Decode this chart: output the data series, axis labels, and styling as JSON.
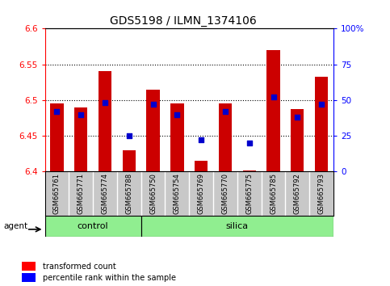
{
  "title": "GDS5198 / ILMN_1374106",
  "samples": [
    "GSM665761",
    "GSM665771",
    "GSM665774",
    "GSM665788",
    "GSM665750",
    "GSM665754",
    "GSM665769",
    "GSM665770",
    "GSM665775",
    "GSM665785",
    "GSM665792",
    "GSM665793"
  ],
  "groups": [
    "control",
    "control",
    "control",
    "control",
    "silica",
    "silica",
    "silica",
    "silica",
    "silica",
    "silica",
    "silica",
    "silica"
  ],
  "bar_tops": [
    6.495,
    6.49,
    6.54,
    6.43,
    6.515,
    6.495,
    6.415,
    6.495,
    6.402,
    6.57,
    6.487,
    6.533
  ],
  "bar_bottom": 6.4,
  "blue_dots_pct": [
    42,
    40,
    48,
    25,
    47,
    40,
    22,
    42,
    20,
    52,
    38,
    47
  ],
  "ylim": [
    6.4,
    6.6
  ],
  "y_ticks": [
    6.4,
    6.45,
    6.5,
    6.55,
    6.6
  ],
  "y_ticks_right": [
    0,
    25,
    50,
    75,
    100
  ],
  "bar_color": "#cc0000",
  "dot_color": "#0000cc",
  "tick_bg": "#c8c8c8",
  "green_bg": "#90ee90",
  "legend_transformed": "transformed count",
  "legend_percentile": "percentile rank within the sample",
  "bar_width": 0.55,
  "n_control": 4,
  "n_silica": 8
}
